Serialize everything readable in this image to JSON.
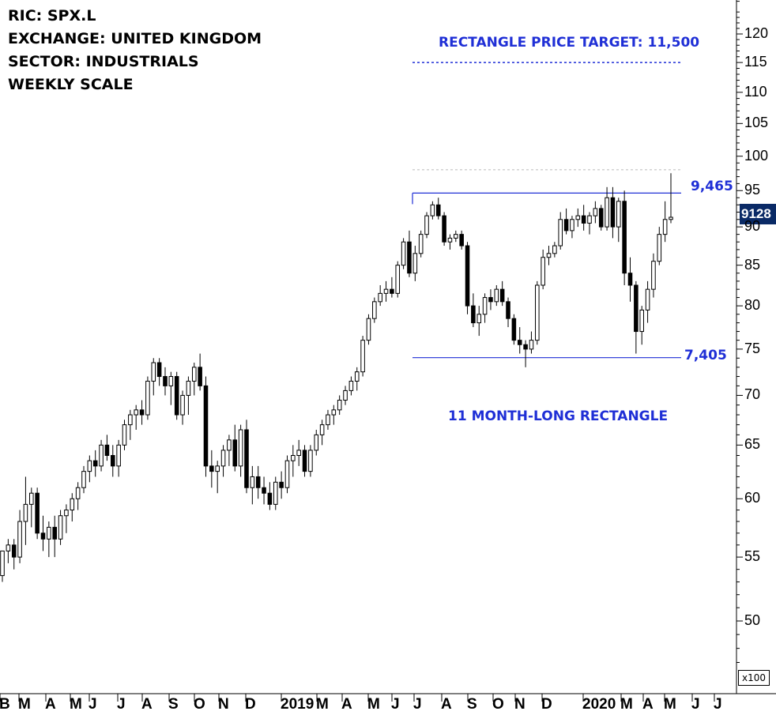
{
  "info": {
    "ric": "RIC: SPX.L",
    "exchange": "EXCHANGE: UNITED KINGDOM",
    "sector": "SECTOR: INDUSTRIALS",
    "scale": "WEEKLY SCALE"
  },
  "annotations": {
    "target_label": "RECTANGLE PRICE TARGET: 11,500",
    "pattern_label": "11 MONTH-LONG RECTANGLE",
    "resistance_label": "9,465",
    "support_label": "7,405",
    "last_price": "9128",
    "multiplier": "x100"
  },
  "colors": {
    "annotation_blue": "#1f2fd6",
    "up_candle": "#ffffff",
    "down_candle": "#000000",
    "last_price_bg": "#0a2a66"
  },
  "chart_data": {
    "type": "candlestick",
    "y_scale": "log",
    "y_unit": "x100",
    "ylim": [
      46,
      127
    ],
    "yticks": [
      50,
      55,
      60,
      65,
      70,
      75,
      80,
      85,
      90,
      95,
      100,
      105,
      110,
      115,
      120
    ],
    "x_labels": [
      "B",
      "M",
      "A",
      "M",
      "J",
      "J",
      "A",
      "S",
      "O",
      "N",
      "D",
      "2019",
      "M",
      "A",
      "M",
      "J",
      "J",
      "A",
      "S",
      "O",
      "N",
      "D",
      "2020",
      "M",
      "A",
      "M",
      "J",
      "J"
    ],
    "levels": {
      "resistance": 94.65,
      "support": 74.05,
      "target": 115,
      "prior_high": 98
    },
    "last_close": 91.28,
    "ohlc": [
      [
        53.5,
        55.5,
        53.0,
        55.5
      ],
      [
        55.5,
        56.5,
        54.5,
        56.0
      ],
      [
        56.0,
        56.5,
        54.0,
        55.0
      ],
      [
        55.0,
        59.0,
        54.5,
        58.0
      ],
      [
        58.0,
        62.0,
        56.0,
        59.5
      ],
      [
        59.5,
        61.0,
        57.5,
        60.5
      ],
      [
        60.5,
        61.0,
        56.5,
        57.0
      ],
      [
        57.0,
        58.5,
        55.5,
        56.5
      ],
      [
        56.5,
        58.0,
        55.0,
        57.5
      ],
      [
        57.5,
        58.5,
        55.0,
        56.5
      ],
      [
        56.5,
        59.0,
        56.0,
        58.5
      ],
      [
        58.5,
        59.5,
        57.0,
        59.0
      ],
      [
        59.0,
        60.5,
        58.0,
        60.0
      ],
      [
        60.0,
        61.5,
        59.0,
        61.0
      ],
      [
        61.0,
        63.0,
        60.5,
        62.5
      ],
      [
        62.5,
        64.0,
        61.5,
        63.5
      ],
      [
        63.5,
        64.5,
        62.0,
        63.0
      ],
      [
        63.0,
        65.5,
        62.5,
        65.0
      ],
      [
        65.0,
        66.0,
        63.5,
        64.0
      ],
      [
        64.0,
        65.0,
        62.0,
        63.0
      ],
      [
        63.0,
        65.5,
        62.0,
        65.0
      ],
      [
        65.0,
        67.5,
        64.5,
        67.0
      ],
      [
        67.0,
        68.5,
        65.5,
        68.0
      ],
      [
        68.0,
        69.0,
        66.5,
        68.5
      ],
      [
        68.5,
        69.5,
        67.0,
        68.0
      ],
      [
        68.0,
        72.0,
        67.5,
        71.5
      ],
      [
        71.5,
        74.0,
        70.0,
        73.5
      ],
      [
        73.5,
        74.0,
        71.0,
        72.0
      ],
      [
        72.0,
        73.0,
        70.0,
        71.0
      ],
      [
        71.0,
        72.5,
        69.0,
        72.0
      ],
      [
        72.0,
        72.5,
        67.5,
        68.0
      ],
      [
        68.0,
        70.5,
        67.0,
        70.0
      ],
      [
        70.0,
        72.0,
        68.0,
        71.5
      ],
      [
        71.5,
        73.5,
        70.0,
        73.0
      ],
      [
        73.0,
        74.5,
        70.5,
        71.0
      ],
      [
        71.0,
        72.0,
        62.0,
        63.0
      ],
      [
        63.0,
        64.5,
        61.0,
        62.5
      ],
      [
        62.5,
        63.5,
        60.5,
        63.0
      ],
      [
        63.0,
        65.0,
        62.0,
        64.5
      ],
      [
        64.5,
        66.0,
        63.0,
        65.5
      ],
      [
        65.5,
        67.0,
        62.5,
        63.0
      ],
      [
        63.0,
        67.0,
        62.0,
        66.5
      ],
      [
        66.5,
        67.5,
        60.5,
        61.0
      ],
      [
        61.0,
        63.0,
        59.5,
        62.0
      ],
      [
        62.0,
        63.0,
        60.0,
        61.0
      ],
      [
        61.0,
        62.0,
        59.5,
        60.5
      ],
      [
        60.5,
        61.5,
        59.0,
        59.5
      ],
      [
        59.5,
        62.0,
        59.0,
        61.5
      ],
      [
        61.5,
        62.5,
        60.0,
        61.0
      ],
      [
        61.0,
        64.0,
        60.5,
        63.5
      ],
      [
        63.5,
        65.0,
        62.0,
        64.0
      ],
      [
        64.0,
        65.5,
        63.0,
        64.5
      ],
      [
        64.5,
        65.0,
        62.0,
        62.5
      ],
      [
        62.5,
        65.0,
        62.0,
        64.5
      ],
      [
        64.5,
        66.5,
        64.0,
        66.0
      ],
      [
        66.0,
        67.5,
        65.0,
        67.0
      ],
      [
        67.0,
        68.5,
        66.5,
        68.0
      ],
      [
        68.0,
        69.0,
        67.0,
        68.5
      ],
      [
        68.5,
        70.0,
        68.0,
        69.5
      ],
      [
        69.5,
        71.0,
        69.0,
        70.5
      ],
      [
        70.5,
        72.0,
        70.0,
        71.5
      ],
      [
        71.5,
        73.0,
        70.5,
        72.5
      ],
      [
        72.5,
        76.5,
        72.0,
        76.0
      ],
      [
        76.0,
        79.0,
        75.5,
        78.5
      ],
      [
        78.5,
        81.0,
        78.0,
        80.5
      ],
      [
        80.5,
        82.5,
        80.0,
        81.5
      ],
      [
        81.5,
        83.0,
        80.5,
        82.0
      ],
      [
        82.0,
        83.5,
        81.0,
        81.5
      ],
      [
        81.5,
        85.5,
        81.0,
        85.0
      ],
      [
        85.0,
        88.5,
        84.5,
        88.0
      ],
      [
        88.0,
        89.5,
        83.5,
        84.0
      ],
      [
        84.0,
        87.5,
        83.0,
        86.5
      ],
      [
        86.5,
        89.5,
        86.0,
        89.0
      ],
      [
        89.0,
        92.0,
        88.5,
        91.5
      ],
      [
        91.5,
        93.5,
        91.0,
        93.0
      ],
      [
        93.0,
        94.0,
        91.0,
        91.5
      ],
      [
        91.5,
        92.0,
        87.5,
        88.0
      ],
      [
        88.0,
        89.0,
        87.0,
        88.5
      ],
      [
        88.5,
        89.5,
        88.0,
        89.0
      ],
      [
        89.0,
        89.5,
        87.0,
        87.5
      ],
      [
        87.5,
        88.0,
        79.0,
        80.0
      ],
      [
        80.0,
        81.5,
        77.5,
        78.0
      ],
      [
        78.0,
        80.0,
        76.5,
        79.0
      ],
      [
        79.0,
        81.5,
        78.0,
        81.0
      ],
      [
        81.0,
        82.0,
        79.5,
        80.5
      ],
      [
        80.5,
        82.5,
        80.0,
        82.0
      ],
      [
        82.0,
        83.0,
        80.0,
        80.5
      ],
      [
        80.5,
        81.0,
        77.5,
        78.5
      ],
      [
        78.5,
        79.0,
        75.5,
        76.0
      ],
      [
        76.0,
        77.5,
        74.5,
        75.5
      ],
      [
        75.5,
        76.0,
        73.0,
        75.0
      ],
      [
        75.0,
        77.0,
        74.5,
        76.0
      ],
      [
        76.0,
        83.0,
        75.5,
        82.5
      ],
      [
        82.5,
        87.0,
        82.0,
        86.0
      ],
      [
        86.0,
        87.5,
        85.0,
        86.5
      ],
      [
        86.5,
        88.0,
        86.0,
        87.5
      ],
      [
        87.5,
        92.0,
        87.0,
        91.0
      ],
      [
        91.0,
        92.5,
        89.0,
        89.5
      ],
      [
        89.5,
        91.5,
        88.5,
        91.0
      ],
      [
        91.0,
        92.5,
        90.0,
        91.5
      ],
      [
        91.5,
        93.0,
        89.5,
        90.5
      ],
      [
        90.5,
        92.0,
        89.0,
        91.5
      ],
      [
        91.5,
        93.5,
        90.5,
        92.5
      ],
      [
        92.5,
        93.0,
        89.5,
        90.0
      ],
      [
        90.0,
        95.5,
        89.5,
        94.0
      ],
      [
        94.0,
        95.5,
        88.5,
        90.0
      ],
      [
        90.0,
        94.0,
        88.0,
        93.5
      ],
      [
        93.5,
        95.0,
        82.5,
        84.0
      ],
      [
        84.0,
        86.0,
        80.5,
        82.5
      ],
      [
        82.5,
        83.0,
        74.5,
        77.0
      ],
      [
        77.0,
        80.0,
        75.5,
        79.5
      ],
      [
        79.5,
        83.0,
        78.0,
        82.0
      ],
      [
        82.0,
        86.5,
        81.0,
        85.5
      ],
      [
        85.5,
        90.0,
        85.0,
        89.0
      ],
      [
        89.0,
        93.5,
        88.0,
        91.0
      ],
      [
        91.0,
        97.5,
        90.5,
        91.3
      ]
    ]
  },
  "axes": {
    "y_labels": [
      "50",
      "55",
      "60",
      "65",
      "70",
      "75",
      "80",
      "85",
      "90",
      "95",
      "100",
      "105",
      "110",
      "115",
      "120"
    ]
  }
}
